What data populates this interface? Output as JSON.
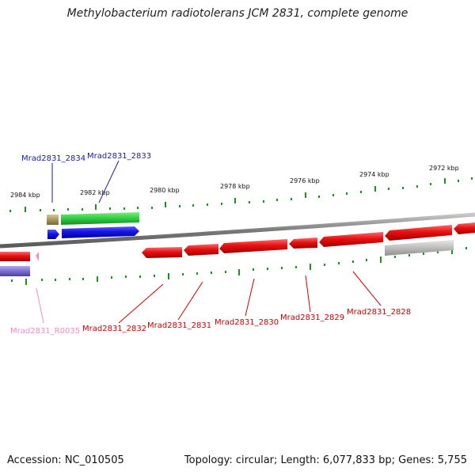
{
  "title": "Methylobacterium radiotolerans JCM 2831, complete genome",
  "footer": {
    "accession": "Accession: NC_010505",
    "summary": "Topology: circular; Length: 6,077,833 bp; Genes: 5,755"
  },
  "scale": {
    "ticks": [
      {
        "label": "2984 kbp"
      },
      {
        "label": "2982 kbp"
      },
      {
        "label": "2980 kbp"
      },
      {
        "label": "2978 kbp"
      },
      {
        "label": "2976 kbp"
      },
      {
        "label": "2974 kbp"
      },
      {
        "label": "2972 kbp"
      }
    ]
  },
  "features": {
    "top_labels": [
      {
        "name": "Mrad2831_2834",
        "color": "#1a1aa6"
      },
      {
        "name": "Mrad2831_2833",
        "color": "#1a1aa6"
      }
    ],
    "bottom_labels": [
      {
        "name": "Mrad2831_R0035",
        "color": "#f08cc8"
      },
      {
        "name": "Mrad2831_2832",
        "color": "#cc0000"
      },
      {
        "name": "Mrad2831_2831",
        "color": "#cc0000"
      },
      {
        "name": "Mrad2831_2830",
        "color": "#cc0000"
      },
      {
        "name": "Mrad2831_2829",
        "color": "#cc0000"
      },
      {
        "name": "Mrad2831_2828",
        "color": "#cc0000"
      }
    ]
  },
  "colors": {
    "backbone": "#8a8a8a",
    "cds_forward": "#1f1fe0",
    "cds_reverse": "#e81010",
    "gc_skew_ticks": "#1f8f1f",
    "green_track": "#2ecc40",
    "olive_track": "#a89860",
    "grey_track": "#b8b8b8",
    "purple_track": "#7b6fd0",
    "trna": "#f08cc8"
  }
}
